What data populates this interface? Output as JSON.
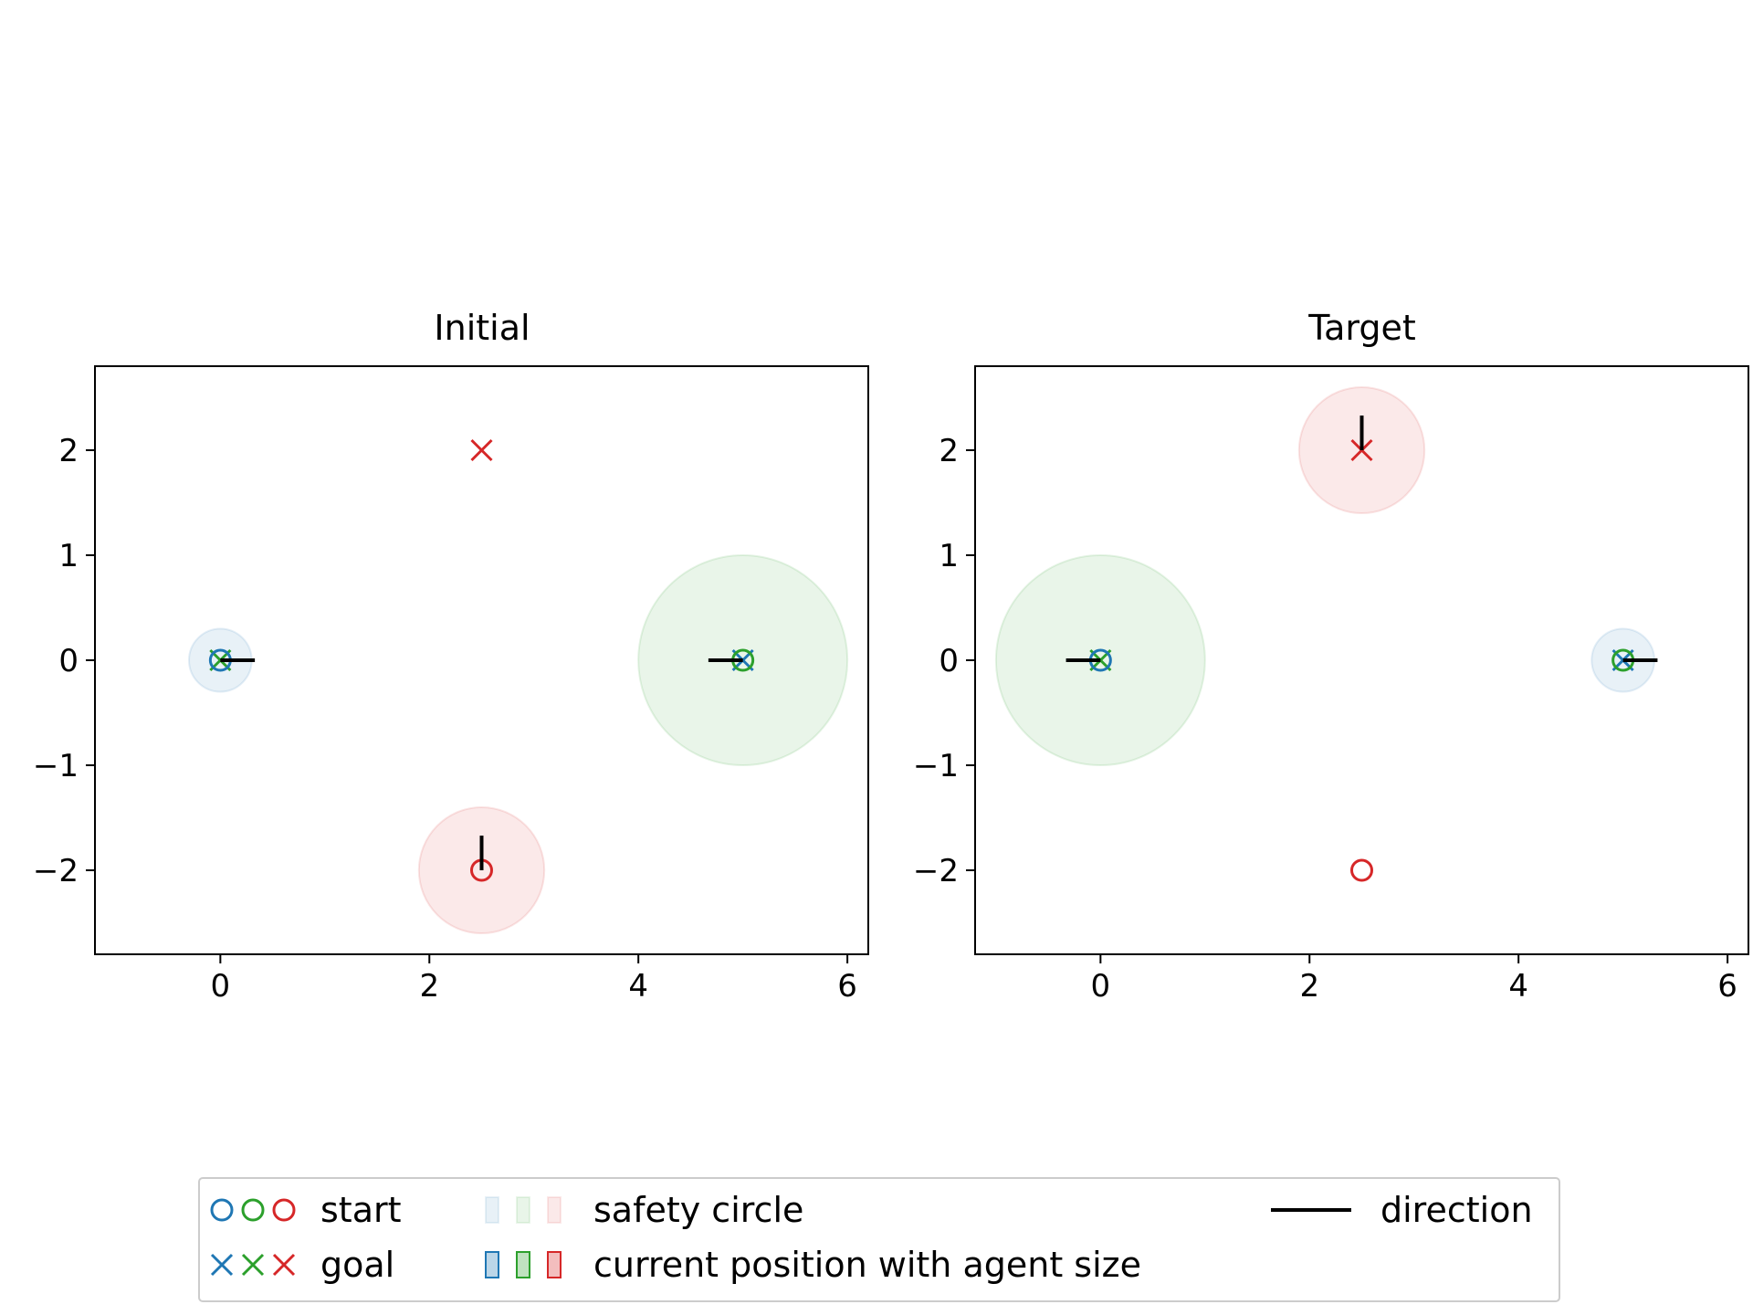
{
  "chart_data": [
    {
      "type": "scatter",
      "title": "Initial",
      "xlabel": "",
      "ylabel": "",
      "xlim": [
        -1.2,
        6.2
      ],
      "ylim": [
        -2.8,
        2.8
      ],
      "xticks": [
        0,
        2,
        4,
        6
      ],
      "yticks": [
        2,
        1,
        0,
        -1,
        -2
      ],
      "agents": [
        {
          "color": "#1f77b4",
          "start": [
            0,
            0
          ],
          "goal": [
            5,
            0
          ],
          "position": [
            0,
            0
          ],
          "safety_radius": 0.3,
          "direction": [
            1,
            0
          ]
        },
        {
          "color": "#2ca02c",
          "start": [
            5,
            0
          ],
          "goal": [
            0,
            0
          ],
          "position": [
            5,
            0
          ],
          "safety_radius": 1.0,
          "direction": [
            -1,
            0
          ]
        },
        {
          "color": "#d62728",
          "start": [
            2.5,
            -2
          ],
          "goal": [
            2.5,
            2
          ],
          "position": [
            2.5,
            -2
          ],
          "safety_radius": 0.6,
          "direction": [
            0,
            1
          ]
        }
      ]
    },
    {
      "type": "scatter",
      "title": "Target",
      "xlabel": "",
      "ylabel": "",
      "xlim": [
        -1.2,
        6.2
      ],
      "ylim": [
        -2.8,
        2.8
      ],
      "xticks": [
        0,
        2,
        4,
        6
      ],
      "yticks": [
        2,
        1,
        0,
        -1,
        -2
      ],
      "agents": [
        {
          "color": "#1f77b4",
          "start": [
            0,
            0
          ],
          "goal": [
            5,
            0
          ],
          "position": [
            5,
            0
          ],
          "safety_radius": 0.3,
          "direction": [
            1,
            0
          ]
        },
        {
          "color": "#2ca02c",
          "start": [
            5,
            0
          ],
          "goal": [
            0,
            0
          ],
          "position": [
            0,
            0
          ],
          "safety_radius": 1.0,
          "direction": [
            -1,
            0
          ]
        },
        {
          "color": "#d62728",
          "start": [
            2.5,
            -2
          ],
          "goal": [
            2.5,
            2
          ],
          "position": [
            2.5,
            2
          ],
          "safety_radius": 0.6,
          "direction": [
            0,
            1
          ]
        }
      ]
    }
  ],
  "legend": {
    "placement": "bottom-center",
    "start_label": "start",
    "goal_label": "goal",
    "safety_label": "safety circle",
    "current_label": "current position with agent size",
    "direction_label": "direction",
    "colors": [
      "#1f77b4",
      "#2ca02c",
      "#d62728"
    ]
  }
}
